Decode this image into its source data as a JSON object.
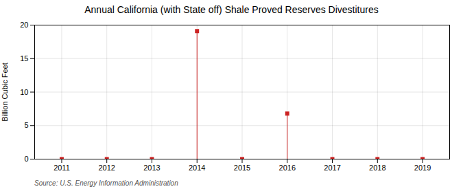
{
  "chart_data": {
    "type": "stem",
    "title": "Annual California (with State off) Shale Proved Reserves Divestitures",
    "ylabel": "Billion Cubic Feet",
    "source": "Source: U.S. Energy Information Administration",
    "x": [
      2011,
      2012,
      2013,
      2014,
      2015,
      2016,
      2017,
      2018,
      2019
    ],
    "values": [
      0.0,
      0.0,
      0.0,
      19.1,
      0.0,
      6.8,
      0.0,
      0.0,
      0.0
    ],
    "color": "#cc2222",
    "marker": "square",
    "xlim": [
      2010.4,
      2019.6
    ],
    "xticks": [
      2011,
      2012,
      2013,
      2014,
      2015,
      2016,
      2017,
      2018,
      2019
    ],
    "ylim": [
      0,
      20
    ],
    "yticks": [
      0,
      5,
      10,
      15,
      20
    ],
    "grid": true
  }
}
